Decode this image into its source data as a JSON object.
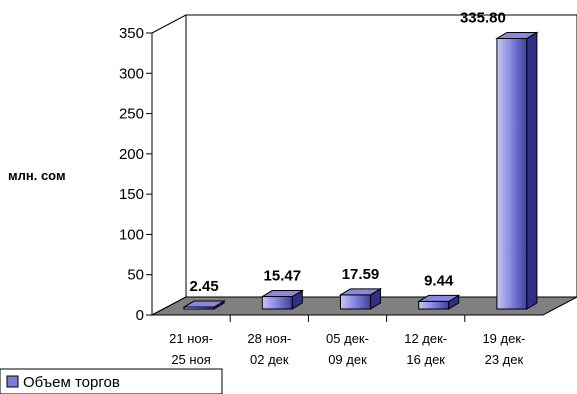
{
  "chart_data": {
    "type": "bar",
    "categories": [
      [
        "21 ноя-",
        "25 ноя"
      ],
      [
        "28 ноя-",
        "02 дек"
      ],
      [
        "05 дек-",
        "09 дек"
      ],
      [
        "12 дек-",
        "16 дек"
      ],
      [
        "19 дек-",
        "23 дек"
      ]
    ],
    "values": [
      2.45,
      15.47,
      17.59,
      9.44,
      335.8
    ],
    "value_labels": [
      "2.45",
      "15.47",
      "17.59",
      "9.44",
      "335.80"
    ],
    "ylabel": "млн. сом",
    "ylim": [
      0,
      350
    ],
    "yticks": [
      0,
      50,
      100,
      150,
      200,
      250,
      300,
      350
    ],
    "legend": {
      "position": "bottom-left",
      "entries": [
        "Объем торгов"
      ]
    },
    "grid": false,
    "colors": {
      "bar_front_light": "#c6c6f5",
      "bar_front_mid": "#7b7bd8",
      "bar_front_dark": "#3e3e9c",
      "bar_top": "#8888e0",
      "bar_side": "#2f2f86",
      "floor": "#808080",
      "wall": "#ffffff",
      "outline": "#000000"
    }
  }
}
